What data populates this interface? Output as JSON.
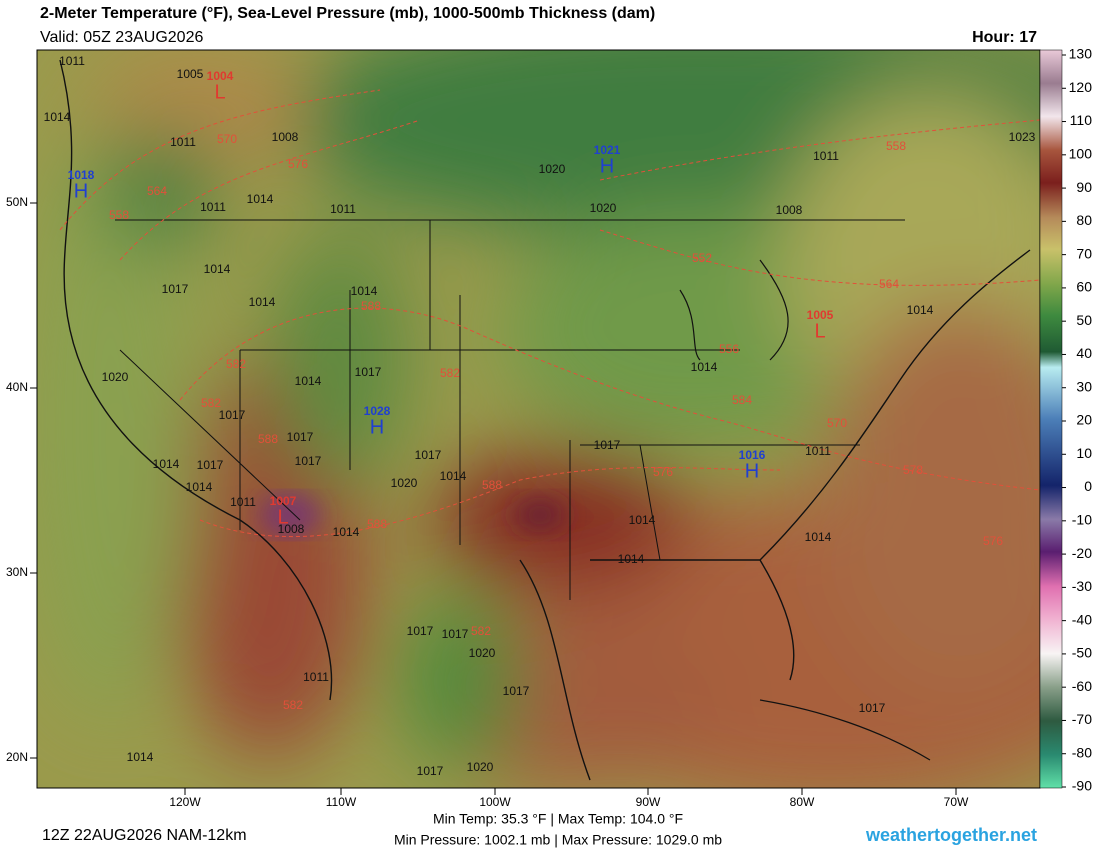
{
  "header": {
    "title": "2-Meter Temperature (°F), Sea-Level Pressure (mb), 1000-500mb Thickness (dam)",
    "valid": "Valid: 05Z 23AUG2026",
    "hour": "Hour: 17"
  },
  "colorbar": {
    "ticks": [
      130,
      120,
      110,
      100,
      90,
      80,
      70,
      60,
      50,
      40,
      30,
      20,
      10,
      0,
      -10,
      -20,
      -30,
      -40,
      -50,
      -60,
      -70,
      -80,
      -90
    ]
  },
  "axes": {
    "lat_labels": [
      "50N",
      "40N",
      "30N",
      "20N"
    ],
    "lon_labels": [
      "120W",
      "110W",
      "100W",
      "90W",
      "80W",
      "70W"
    ]
  },
  "map_labels": {
    "pressure": [
      "1011",
      "1005",
      "1008",
      "1011",
      "1014",
      "1011",
      "1014",
      "1011",
      "1014",
      "1017",
      "1014",
      "1014",
      "1020",
      "1017",
      "1014",
      "1017",
      "1017",
      "1017",
      "1014",
      "1017",
      "1014",
      "1011",
      "1008",
      "1014",
      "1020",
      "1017",
      "1014",
      "1020",
      "1020",
      "1011",
      "1008",
      "1014",
      "1017",
      "1011",
      "1014",
      "1014",
      "1014",
      "1017",
      "1017",
      "1020",
      "1017",
      "1011",
      "1014",
      "1017",
      "1020",
      "1017",
      "1014",
      "1023"
    ],
    "centers": [
      {
        "symbol": "L",
        "value": "1004"
      },
      {
        "symbol": "H",
        "value": "1018"
      },
      {
        "symbol": "H",
        "value": "1021"
      },
      {
        "symbol": "H",
        "value": "1028"
      },
      {
        "symbol": "H",
        "value": "1016"
      },
      {
        "symbol": "L",
        "value": "1005"
      },
      {
        "symbol": "L",
        "value": "1007"
      }
    ],
    "thickness": [
      "570",
      "576",
      "564",
      "558",
      "582",
      "582",
      "588",
      "582",
      "588",
      "588",
      "588",
      "582",
      "582",
      "576",
      "584",
      "570",
      "578",
      "576",
      "558",
      "564",
      "552",
      "556"
    ]
  },
  "footer": {
    "run": "12Z 22AUG2026 NAM-12km",
    "temps": "Min Temp:  35.3 °F | Max Temp: 104.0 °F",
    "pressures": "Min Pressure: 1002.1 mb | Max Pressure: 1029.0 mb",
    "site": "weathertogether.net"
  }
}
